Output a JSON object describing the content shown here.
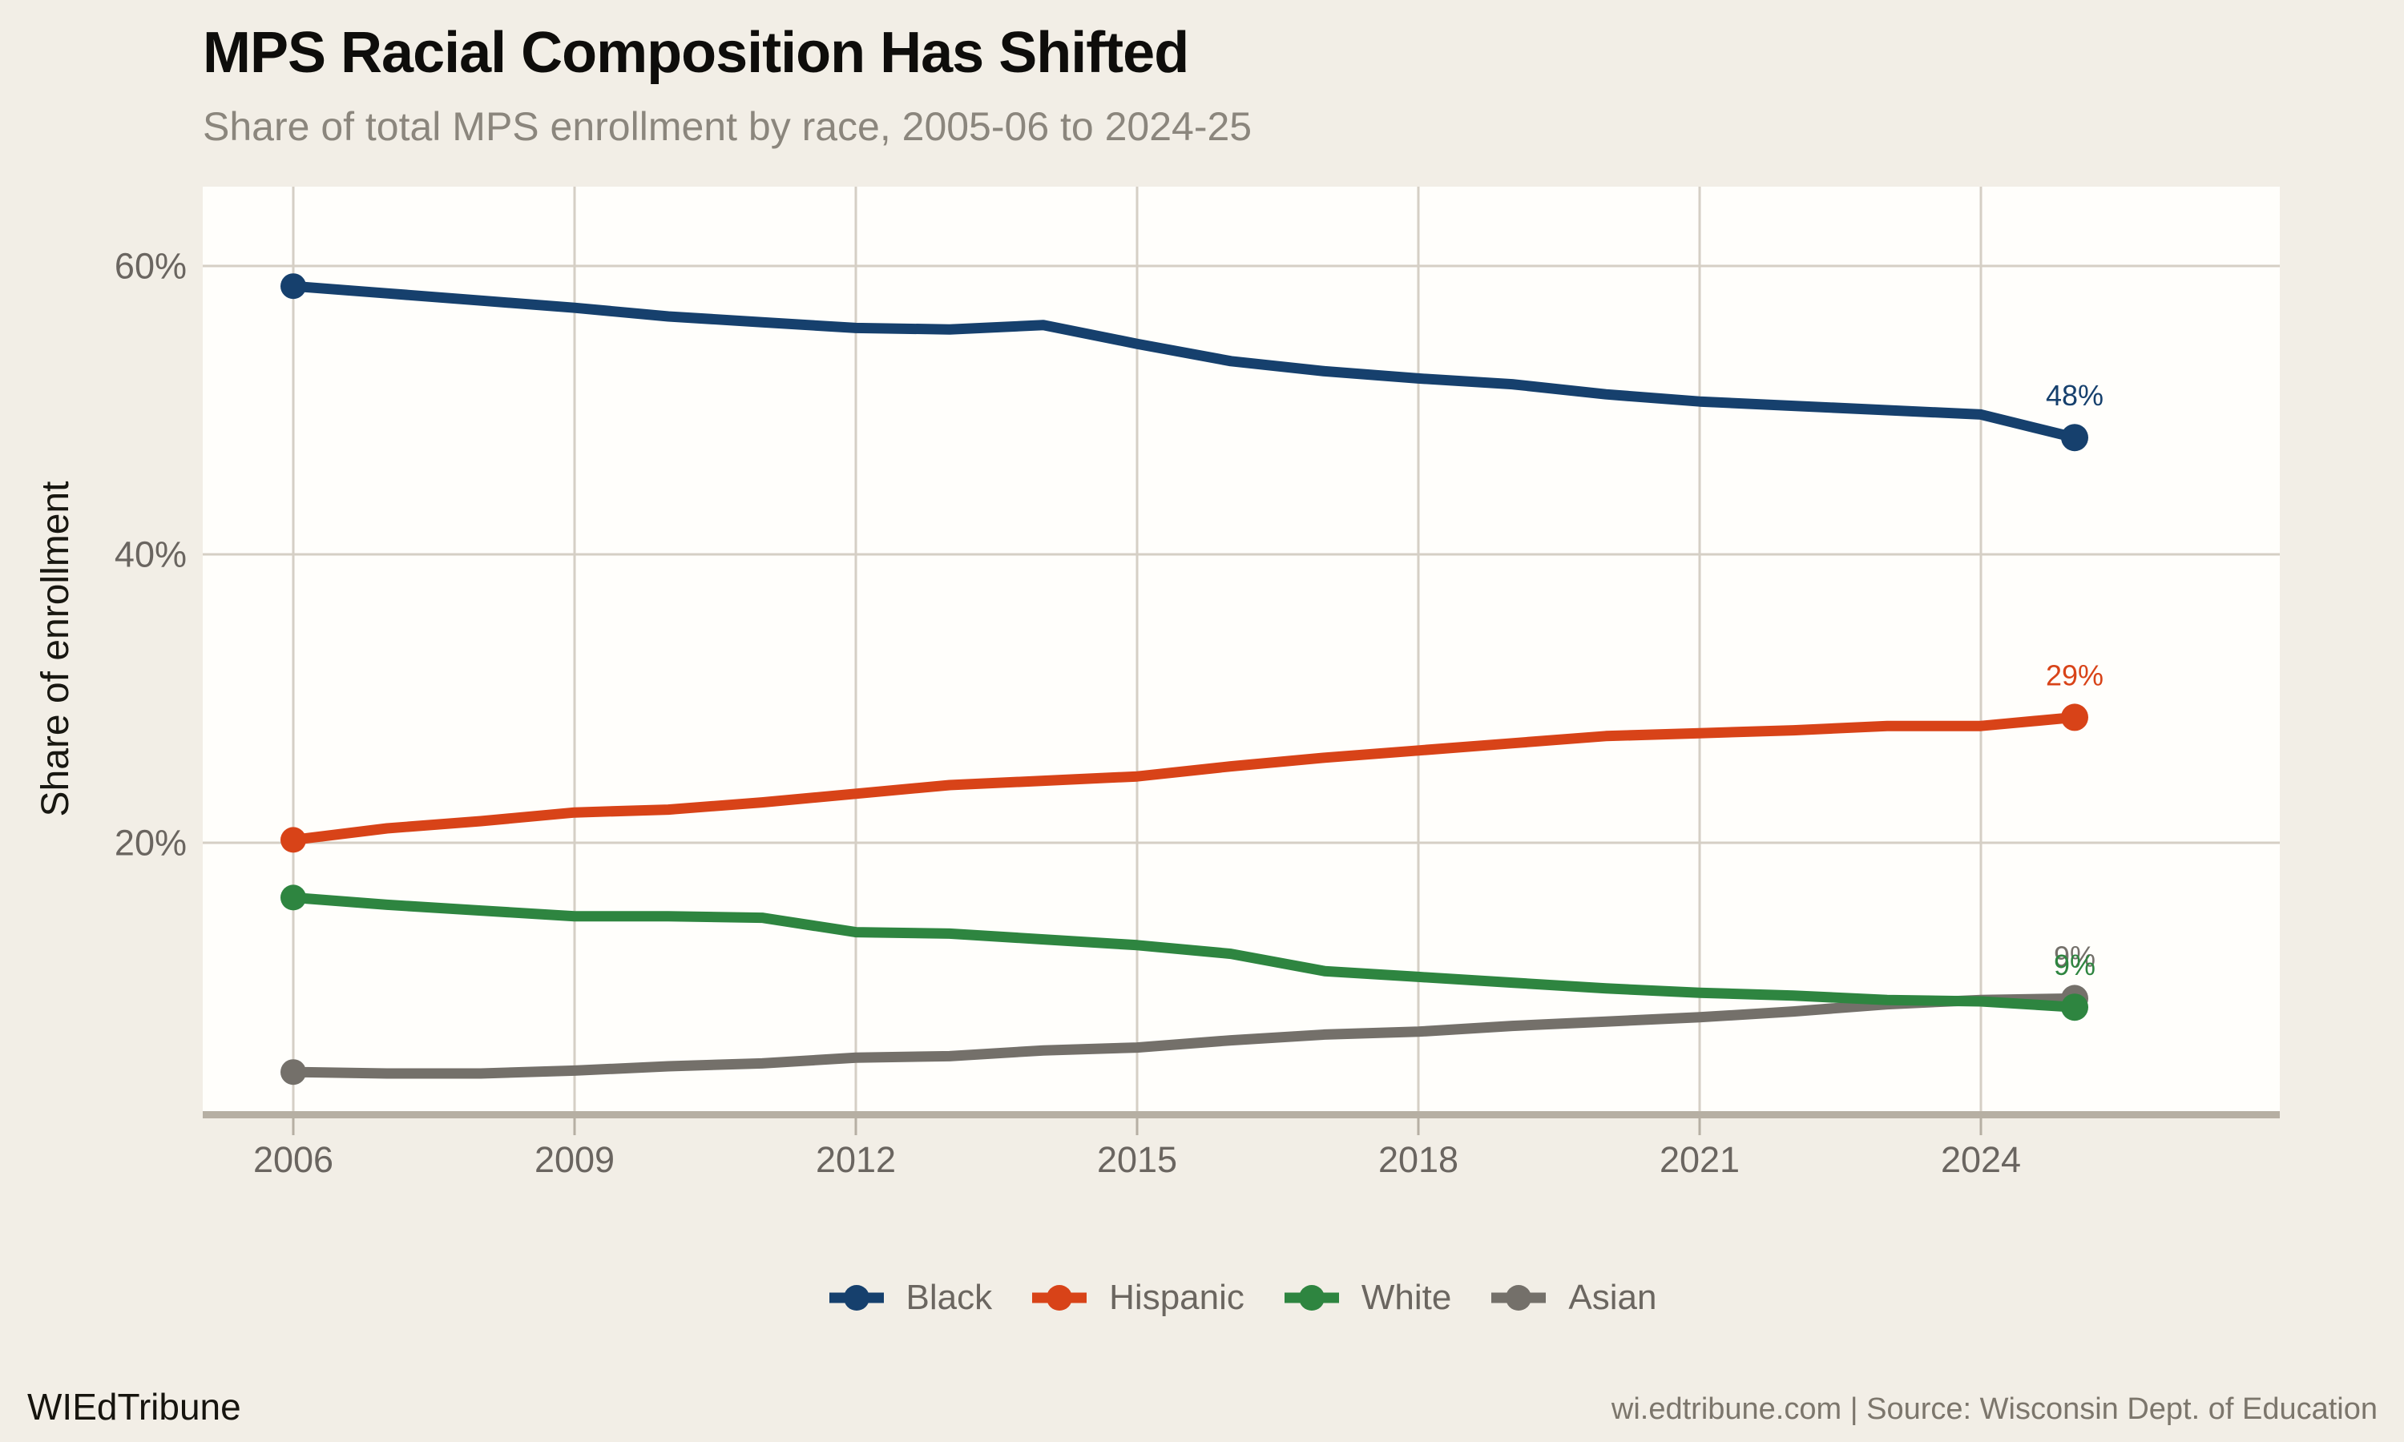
{
  "header": {
    "title": "MPS Racial Composition Has Shifted",
    "subtitle": "Share of total MPS enrollment by race, 2005-06 to 2024-25"
  },
  "chart_data": {
    "type": "line",
    "title": "MPS Racial Composition Has Shifted",
    "subtitle": "Share of total MPS enrollment by race, 2005-06 to 2024-25",
    "xlabel": "",
    "ylabel": "Share of enrollment",
    "x": [
      2006,
      2007,
      2008,
      2009,
      2010,
      2011,
      2012,
      2013,
      2014,
      2015,
      2016,
      2017,
      2018,
      2019,
      2020,
      2021,
      2022,
      2023,
      2024,
      2025
    ],
    "x_ticks": [
      {
        "value": 2006,
        "label": "2006"
      },
      {
        "value": 2009,
        "label": "2009"
      },
      {
        "value": 2012,
        "label": "2012"
      },
      {
        "value": 2015,
        "label": "2015"
      },
      {
        "value": 2018,
        "label": "2018"
      },
      {
        "value": 2021,
        "label": "2021"
      },
      {
        "value": 2024,
        "label": "2024"
      }
    ],
    "y_ticks": [
      {
        "value": 60,
        "label": "60%"
      },
      {
        "value": 40,
        "label": "40%"
      },
      {
        "value": 20,
        "label": "20%"
      }
    ],
    "ylim": [
      1.5,
      65.5
    ],
    "grid": true,
    "legend_position": "bottom",
    "series": [
      {
        "name": "Black",
        "color": "#16406d",
        "end_label": "48%",
        "values": [
          58.6,
          58.1,
          57.6,
          57.1,
          56.5,
          56.1,
          55.7,
          55.6,
          55.9,
          54.6,
          53.4,
          52.7,
          52.2,
          51.8,
          51.1,
          50.6,
          50.3,
          50.0,
          49.7,
          48.1
        ]
      },
      {
        "name": "Hispanic",
        "color": "#d84318",
        "end_label": "29%",
        "values": [
          20.2,
          21.0,
          21.5,
          22.1,
          22.3,
          22.8,
          23.4,
          24.0,
          24.3,
          24.6,
          25.3,
          25.9,
          26.4,
          26.9,
          27.4,
          27.6,
          27.8,
          28.1,
          28.1,
          28.7
        ]
      },
      {
        "name": "White",
        "color": "#2e8540",
        "end_label": "9%",
        "values": [
          16.2,
          15.7,
          15.3,
          14.9,
          14.9,
          14.8,
          13.8,
          13.7,
          13.3,
          12.9,
          12.3,
          11.1,
          10.7,
          10.3,
          9.9,
          9.6,
          9.4,
          9.1,
          9.0,
          8.6
        ]
      },
      {
        "name": "Asian",
        "color": "#74706a",
        "end_label": "9%",
        "values": [
          4.1,
          4.0,
          4.0,
          4.2,
          4.5,
          4.7,
          5.1,
          5.2,
          5.6,
          5.8,
          6.3,
          6.7,
          6.9,
          7.3,
          7.6,
          7.9,
          8.3,
          8.8,
          9.1,
          9.2
        ]
      }
    ],
    "draw_order": [
      "Black",
      "Hispanic",
      "Asian",
      "White"
    ]
  },
  "colors": {
    "background": "#f2eee6",
    "panel": "#fffefb",
    "gridline": "#d5cfc5",
    "axis_line": "#b6afa3",
    "tick_text": "#6a6560",
    "legend_text": "#6b6660"
  },
  "footer": {
    "brand": "WIEdTribune",
    "source": "wi.edtribune.com | Source: Wisconsin Dept. of Education"
  }
}
